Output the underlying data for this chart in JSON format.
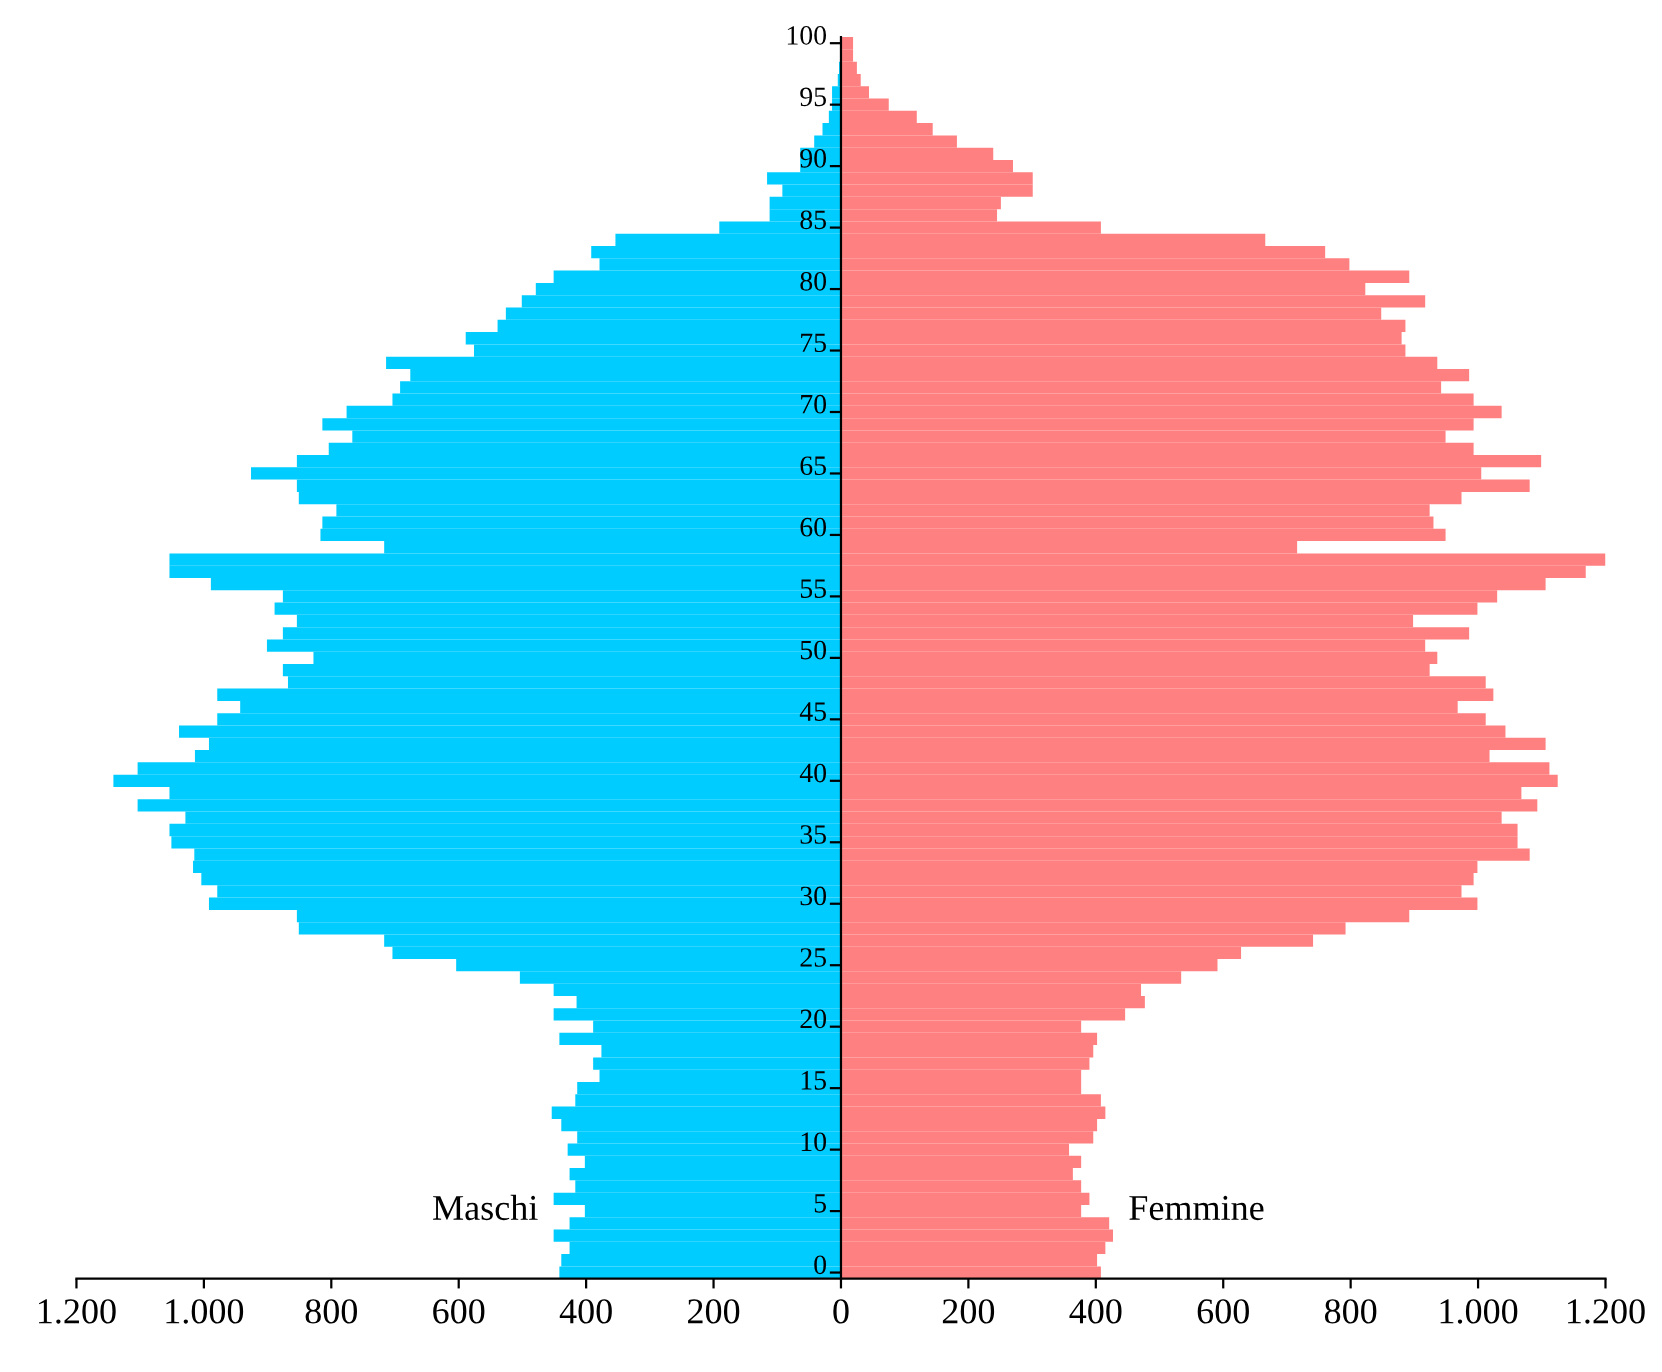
{
  "chart_data": {
    "type": "bar",
    "orientation": "horizontal",
    "stacked": true,
    "categories": [
      "100",
      null,
      null,
      null,
      null,
      "95",
      null,
      null,
      null,
      null,
      "90",
      null,
      null,
      null,
      null,
      "85",
      null,
      null,
      null,
      null,
      "80",
      null,
      null,
      null,
      null,
      "75",
      null,
      null,
      null,
      null,
      "70",
      null,
      null,
      null,
      null,
      "65",
      null,
      null,
      null,
      null,
      "60",
      null,
      null,
      null,
      null,
      "55",
      null,
      null,
      null,
      null,
      "50",
      null,
      null,
      null,
      null,
      "45",
      null,
      null,
      null,
      null,
      "40",
      null,
      null,
      null,
      null,
      "35",
      null,
      null,
      null,
      null,
      "30",
      null,
      null,
      null,
      null,
      "25",
      null,
      null,
      null,
      null,
      "20",
      null,
      null,
      null,
      null,
      "15",
      null,
      null,
      null,
      null,
      "10",
      null,
      null,
      null,
      null,
      "5",
      null,
      null,
      null,
      null,
      "0"
    ],
    "series": [
      {
        "name": "Maschi",
        "color": "#00ccff",
        "values": [
          null,
          null,
          -3,
          -5,
          -14,
          -14,
          -19,
          -29,
          -42,
          -64,
          -64,
          -116,
          -92,
          -112,
          -112,
          -191,
          -354,
          -392,
          -379,
          -451,
          -479,
          -501,
          -526,
          -539,
          -589,
          -576,
          -714,
          -676,
          -692,
          -704,
          -776,
          -814,
          -767,
          -804,
          -854,
          -926,
          -854,
          -851,
          -792,
          -814,
          -817,
          -717,
          -1054,
          -1054,
          -989,
          -876,
          -889,
          -854,
          -876,
          -901,
          -828,
          -876,
          -868,
          -979,
          -943,
          -979,
          -1039,
          -992,
          -1014,
          -1104,
          -1142,
          -1054,
          -1104,
          -1029,
          -1054,
          -1051,
          -1015,
          -1017,
          -1004,
          -979,
          -992,
          -854,
          -851,
          -717,
          -704,
          -604,
          -504,
          -451,
          -415,
          -451,
          -389,
          -442,
          -376,
          -389,
          -379,
          -414,
          -417,
          -454,
          -439,
          -414,
          -429,
          -402,
          -426,
          -417,
          -451,
          -402,
          -426,
          -451,
          -426,
          -439,
          -442
        ]
      },
      {
        "name": "Femmine",
        "color": "#ff8080",
        "values": [
          19,
          19,
          25,
          31,
          44,
          75,
          119,
          144,
          182,
          239,
          270,
          301,
          301,
          251,
          245,
          408,
          666,
          760,
          798,
          892,
          823,
          917,
          848,
          886,
          880,
          886,
          936,
          986,
          942,
          993,
          1037,
          993,
          949,
          993,
          1099,
          1005,
          1081,
          974,
          924,
          930,
          949,
          716,
          1200,
          1169,
          1106,
          1030,
          999,
          898,
          986,
          917,
          936,
          924,
          1012,
          1024,
          968,
          1012,
          1043,
          1106,
          1018,
          1112,
          1125,
          1068,
          1093,
          1037,
          1062,
          1062,
          1081,
          999,
          993,
          974,
          999,
          892,
          792,
          741,
          628,
          591,
          534,
          471,
          477,
          446,
          377,
          402,
          396,
          390,
          377,
          377,
          408,
          415,
          402,
          396,
          358,
          377,
          364,
          377,
          390,
          377,
          421,
          427,
          415,
          402,
          408
        ]
      }
    ],
    "xlim": [
      -1200,
      1200
    ],
    "xticks": [
      {
        "value": -1200,
        "label": "1.200"
      },
      {
        "value": -1000,
        "label": "1.000"
      },
      {
        "value": -800,
        "label": "800"
      },
      {
        "value": -600,
        "label": "600"
      },
      {
        "value": -400,
        "label": "400"
      },
      {
        "value": -200,
        "label": "200"
      },
      0,
      200,
      400,
      600,
      800,
      {
        "value": 1000,
        "label": "1.000"
      },
      {
        "value": 1200,
        "label": "1.200"
      }
    ],
    "grid": false,
    "legend": false
  }
}
